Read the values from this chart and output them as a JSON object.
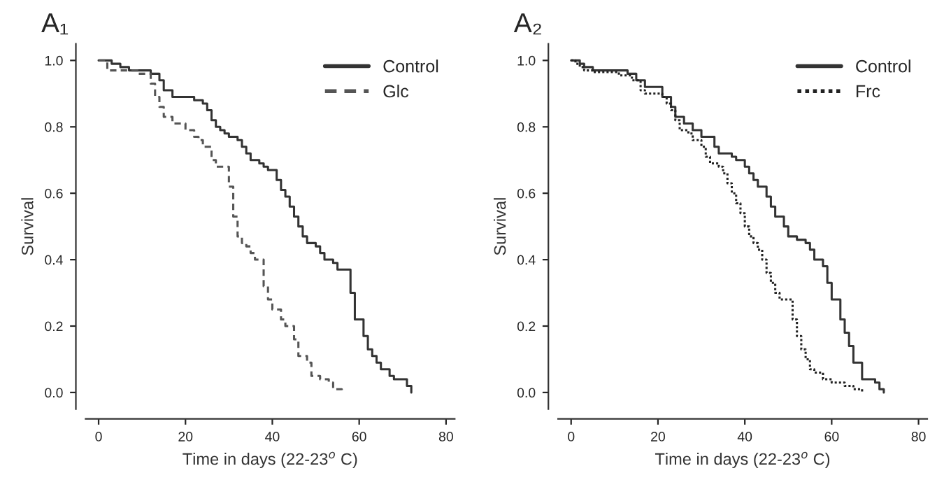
{
  "chart_data": [
    {
      "type": "step",
      "title": "A₁",
      "xlabel": "Time in days (22-23$^{o}$ C)",
      "ylabel": "Survival",
      "xlim": [
        -3,
        82
      ],
      "xticks": [
        0,
        20,
        40,
        60,
        80
      ],
      "ylim": [
        -0.05,
        1.05
      ],
      "yticks": [
        {
          "value": 0,
          "label": "0.0"
        },
        {
          "value": 0.2,
          "label": "0.2"
        },
        {
          "value": 0.4,
          "label": "0.4"
        },
        {
          "value": 0.6,
          "label": "0.6"
        },
        {
          "value": 0.8,
          "label": "0.8"
        },
        {
          "value": 1,
          "label": "1.0"
        }
      ],
      "grid": false,
      "legend": "top right",
      "series": [
        {
          "name": "Control",
          "color": "#333333",
          "line_style": "solid",
          "x": [
            0,
            3,
            5,
            7,
            12,
            14,
            15,
            17,
            22,
            24,
            25,
            26,
            27,
            28,
            29,
            30,
            32,
            33,
            34,
            35,
            37,
            38,
            39,
            41,
            42,
            43,
            44,
            45,
            46,
            47,
            48,
            50,
            51,
            52,
            54,
            55,
            58,
            59,
            61,
            62,
            63,
            64,
            65,
            67,
            68,
            71,
            72
          ],
          "values": [
            1.0,
            0.99,
            0.98,
            0.97,
            0.96,
            0.94,
            0.91,
            0.89,
            0.88,
            0.87,
            0.85,
            0.82,
            0.8,
            0.79,
            0.78,
            0.77,
            0.76,
            0.74,
            0.72,
            0.7,
            0.69,
            0.68,
            0.67,
            0.64,
            0.61,
            0.59,
            0.56,
            0.53,
            0.5,
            0.47,
            0.45,
            0.44,
            0.42,
            0.4,
            0.39,
            0.37,
            0.3,
            0.22,
            0.17,
            0.13,
            0.11,
            0.09,
            0.07,
            0.05,
            0.04,
            0.02,
            0.0
          ]
        },
        {
          "name": "Glc",
          "color": "#555555",
          "line_style": "dashed",
          "x": [
            0,
            2,
            9,
            12,
            13,
            14,
            15,
            17,
            20,
            22,
            23,
            24,
            26,
            27,
            30,
            31,
            32,
            33,
            34,
            35,
            36,
            38,
            39,
            40,
            42,
            43,
            45,
            46,
            48,
            49,
            51,
            53,
            54,
            56
          ],
          "values": [
            1.0,
            0.97,
            0.96,
            0.93,
            0.89,
            0.86,
            0.83,
            0.81,
            0.79,
            0.77,
            0.76,
            0.74,
            0.7,
            0.68,
            0.62,
            0.53,
            0.47,
            0.45,
            0.44,
            0.42,
            0.4,
            0.32,
            0.28,
            0.25,
            0.22,
            0.2,
            0.16,
            0.11,
            0.09,
            0.05,
            0.04,
            0.03,
            0.01,
            0.0
          ]
        }
      ]
    },
    {
      "type": "step",
      "title": "A₂",
      "xlabel": "Time in days (22-23$^{o}$ C)",
      "ylabel": "Survival",
      "xlim": [
        -3,
        82
      ],
      "xticks": [
        0,
        20,
        40,
        60,
        80
      ],
      "ylim": [
        -0.05,
        1.05
      ],
      "yticks": [
        {
          "value": 0,
          "label": "0.0"
        },
        {
          "value": 0.2,
          "label": "0.2"
        },
        {
          "value": 0.4,
          "label": "0.4"
        },
        {
          "value": 0.6,
          "label": "0.6"
        },
        {
          "value": 0.8,
          "label": "0.8"
        },
        {
          "value": 1,
          "label": "1.0"
        }
      ],
      "grid": false,
      "legend": "top right",
      "series": [
        {
          "name": "Control",
          "color": "#333333",
          "line_style": "solid",
          "x": [
            0,
            2,
            3,
            5,
            13,
            15,
            17,
            21,
            23,
            24,
            26,
            28,
            30,
            33,
            34,
            37,
            38,
            40,
            41,
            42,
            43,
            45,
            46,
            47,
            49,
            50,
            52,
            54,
            55,
            56,
            58,
            59,
            60,
            62,
            63,
            64,
            65,
            67,
            70,
            71,
            72
          ],
          "values": [
            1.0,
            0.99,
            0.98,
            0.97,
            0.96,
            0.94,
            0.92,
            0.89,
            0.86,
            0.83,
            0.81,
            0.79,
            0.77,
            0.74,
            0.72,
            0.71,
            0.7,
            0.68,
            0.66,
            0.64,
            0.62,
            0.59,
            0.56,
            0.53,
            0.5,
            0.47,
            0.46,
            0.45,
            0.43,
            0.4,
            0.38,
            0.33,
            0.28,
            0.22,
            0.18,
            0.14,
            0.09,
            0.04,
            0.03,
            0.01,
            0.0
          ]
        },
        {
          "name": "Frc",
          "color": "#222222",
          "line_style": "dotted",
          "x": [
            0,
            1,
            2,
            3,
            5,
            11,
            14,
            16,
            17,
            21,
            22,
            23,
            24,
            25,
            27,
            28,
            30,
            31,
            32,
            34,
            35,
            36,
            37,
            38,
            39,
            40,
            41,
            42,
            43,
            44,
            45,
            46,
            47,
            48,
            51,
            52,
            53,
            54,
            55,
            56,
            58,
            60,
            63,
            65,
            67
          ],
          "values": [
            1.0,
            0.99,
            0.98,
            0.97,
            0.965,
            0.955,
            0.94,
            0.91,
            0.9,
            0.89,
            0.87,
            0.85,
            0.82,
            0.79,
            0.78,
            0.76,
            0.74,
            0.71,
            0.69,
            0.68,
            0.66,
            0.63,
            0.6,
            0.57,
            0.54,
            0.5,
            0.47,
            0.45,
            0.43,
            0.4,
            0.36,
            0.33,
            0.3,
            0.28,
            0.22,
            0.17,
            0.13,
            0.1,
            0.07,
            0.06,
            0.04,
            0.03,
            0.02,
            0.01,
            0.0
          ]
        }
      ]
    }
  ]
}
